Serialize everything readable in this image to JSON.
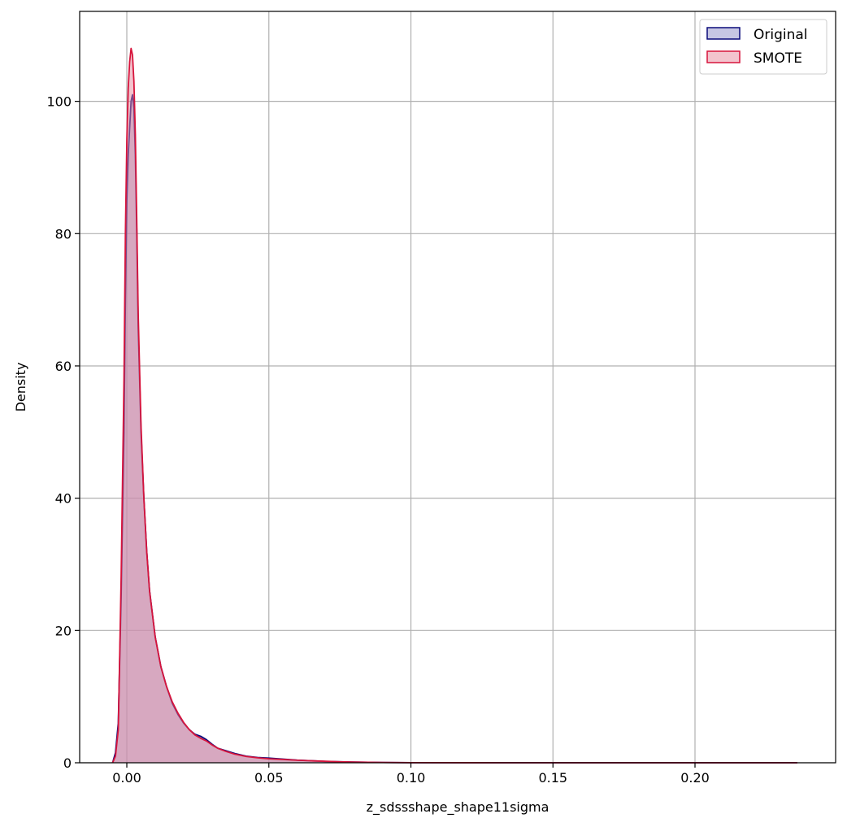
{
  "chart_data": {
    "type": "area",
    "title": "",
    "xlabel": "z_sdssshape_shape11sigma",
    "ylabel": "Density",
    "xlim": [
      -0.0166,
      0.2495
    ],
    "ylim": [
      0,
      113.6
    ],
    "xticks": [
      0.0,
      0.05,
      0.1,
      0.15,
      0.2
    ],
    "xtick_labels": [
      "0.00",
      "0.05",
      "0.10",
      "0.15",
      "0.20"
    ],
    "yticks": [
      0,
      20,
      40,
      60,
      80,
      100
    ],
    "ytick_labels": [
      "0",
      "20",
      "40",
      "60",
      "80",
      "100"
    ],
    "grid": true,
    "legend_position": "top-right",
    "series": [
      {
        "name": "Original",
        "stroke": "#0a0a7a",
        "fill": "#9999cc",
        "fill_opacity": 0.55,
        "x": [
          -0.005,
          -0.004,
          -0.003,
          -0.002,
          -0.001,
          -0.0005,
          0.0,
          0.0005,
          0.001,
          0.0015,
          0.002,
          0.0025,
          0.003,
          0.0035,
          0.004,
          0.005,
          0.006,
          0.007,
          0.008,
          0.01,
          0.012,
          0.014,
          0.016,
          0.018,
          0.02,
          0.022,
          0.024,
          0.026,
          0.028,
          0.03,
          0.032,
          0.035,
          0.038,
          0.042,
          0.046,
          0.05,
          0.055,
          0.06,
          0.065,
          0.07,
          0.075,
          0.08,
          0.09,
          0.1,
          0.12,
          0.15,
          0.2,
          0.236
        ],
        "y": [
          0,
          1.5,
          6,
          25,
          50,
          70,
          85,
          92,
          96,
          100,
          101,
          99,
          92,
          80,
          66,
          50,
          40,
          32,
          26,
          19,
          14.5,
          11.5,
          9,
          7.3,
          6,
          5,
          4.3,
          4,
          3.5,
          2.8,
          2.2,
          1.8,
          1.4,
          1.0,
          0.8,
          0.7,
          0.55,
          0.4,
          0.3,
          0.2,
          0.15,
          0.1,
          0.05,
          0.02,
          0.01,
          0.0,
          0.0,
          0.0
        ]
      },
      {
        "name": "SMOTE",
        "stroke": "#d7143c",
        "fill": "#e8899d",
        "fill_opacity": 0.5,
        "x": [
          -0.005,
          -0.004,
          -0.003,
          -0.002,
          -0.001,
          -0.0005,
          0.0,
          0.0005,
          0.001,
          0.0015,
          0.002,
          0.0025,
          0.003,
          0.0035,
          0.004,
          0.005,
          0.006,
          0.007,
          0.008,
          0.01,
          0.012,
          0.014,
          0.016,
          0.018,
          0.02,
          0.022,
          0.024,
          0.026,
          0.028,
          0.03,
          0.032,
          0.035,
          0.038,
          0.042,
          0.046,
          0.05,
          0.055,
          0.06,
          0.065,
          0.07,
          0.075,
          0.08,
          0.09,
          0.1,
          0.12,
          0.15,
          0.2,
          0.236
        ],
        "y": [
          0,
          1.0,
          5,
          28,
          58,
          80,
          94,
          102,
          106,
          108,
          107,
          103,
          95,
          82,
          68,
          51,
          40,
          32,
          26,
          19,
          14.5,
          11.5,
          9.2,
          7.5,
          6.1,
          5.0,
          4.2,
          3.7,
          3.3,
          2.7,
          2.2,
          1.7,
          1.3,
          0.95,
          0.75,
          0.6,
          0.5,
          0.38,
          0.3,
          0.22,
          0.15,
          0.1,
          0.05,
          0.02,
          0.01,
          0.0,
          0.0,
          0.0
        ]
      }
    ]
  }
}
